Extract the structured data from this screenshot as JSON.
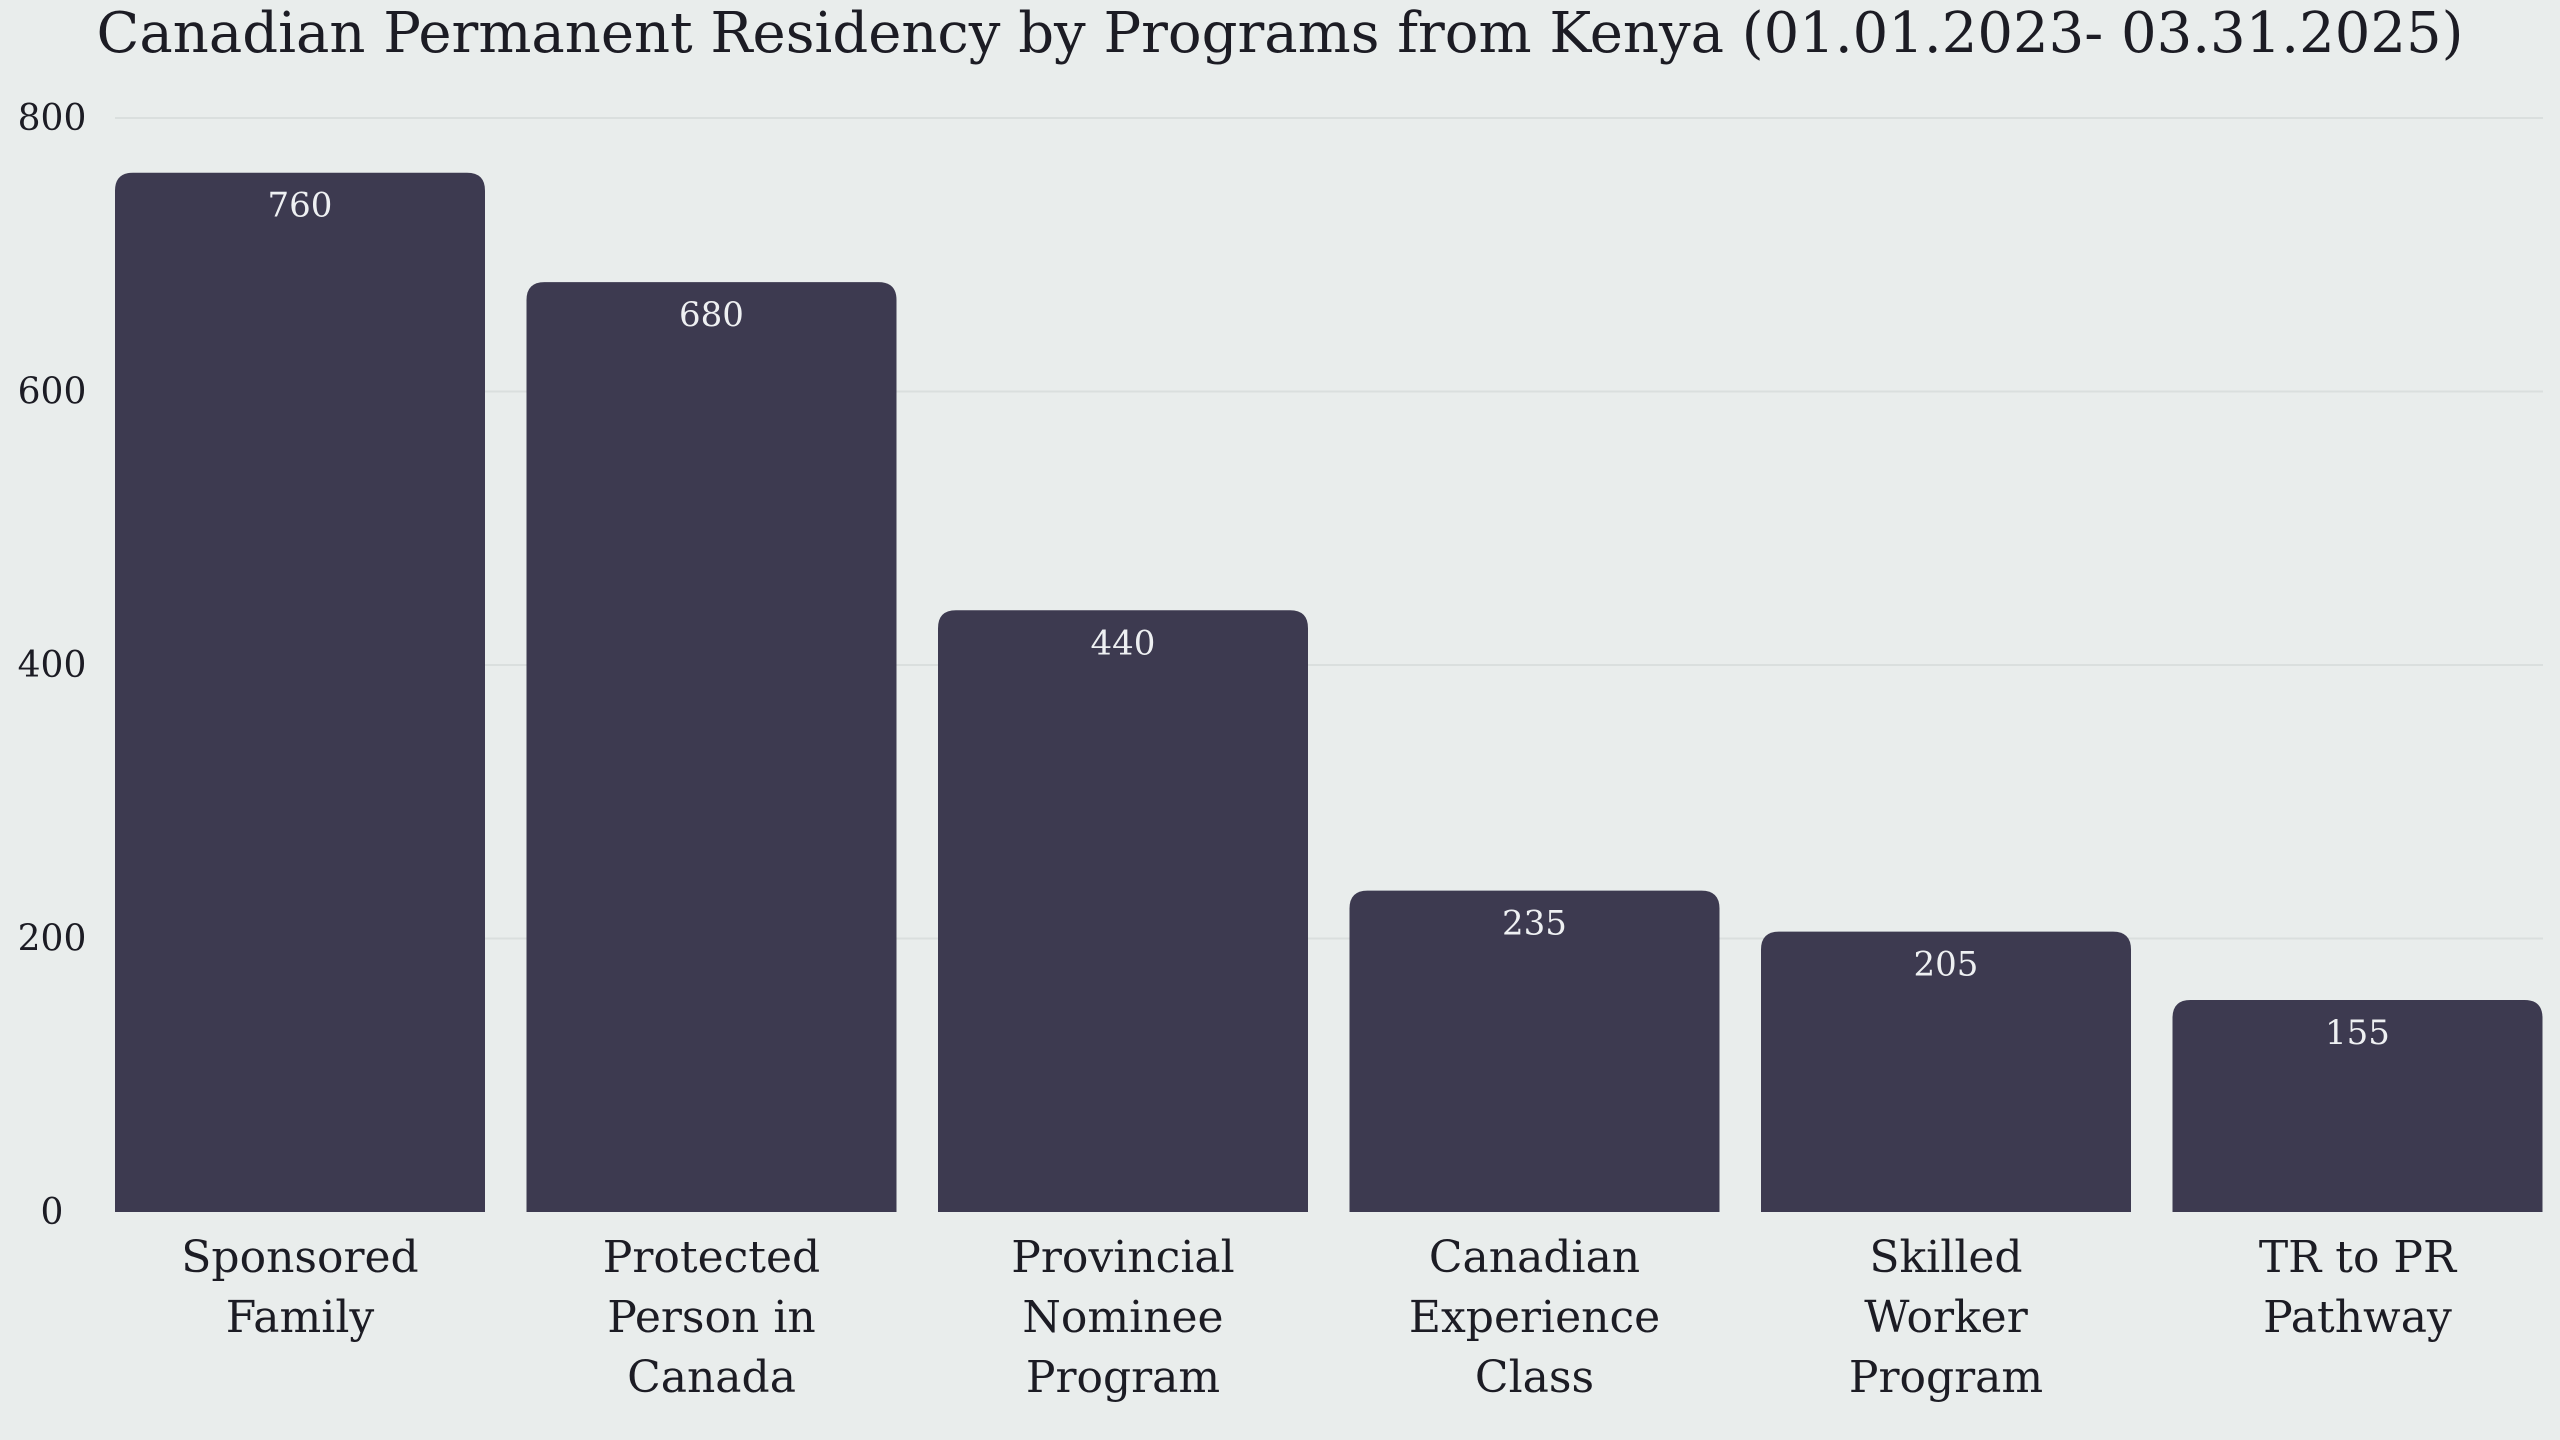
{
  "chart_data": {
    "type": "bar",
    "title": "Canadian Permanent Residency by Programs from Kenya (01.01.2023- 03.31.2025)",
    "xlabel": "",
    "ylabel": "",
    "categories": [
      "Sponsored Family",
      "Protected Person in Canada",
      "Provincial Nominee Program",
      "Canadian Experience Class",
      "Skilled Worker Program",
      "TR to PR Pathway"
    ],
    "values": [
      760,
      680,
      440,
      235,
      205,
      155
    ],
    "data_labels": [
      "760",
      "680",
      "440",
      "235",
      "205",
      "155"
    ],
    "ylim": [
      0,
      800
    ],
    "yticks": [
      "0",
      "200",
      "400",
      "600",
      "800"
    ],
    "grid": true,
    "legend": "none",
    "bar_color": "#3d3a50",
    "background_color": "#e9edec"
  }
}
